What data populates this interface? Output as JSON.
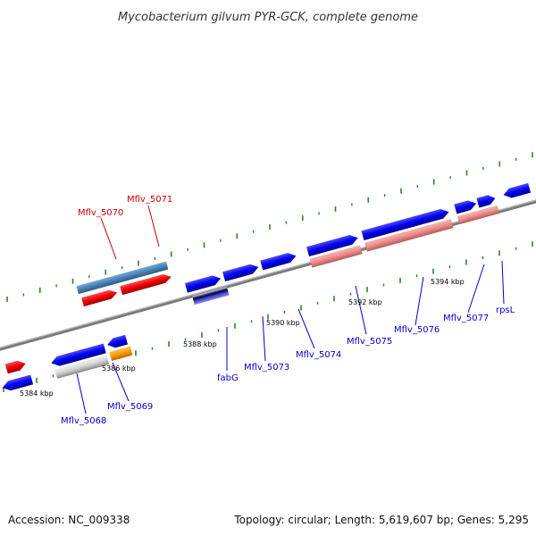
{
  "title": "Mycobacterium gilvum PYR-GCK, complete genome",
  "footer": {
    "accession": "Accession: NC_009338",
    "summary": "Topology: circular; Length: 5,619,607 bp; Genes: 5,295"
  },
  "colors": {
    "backbone": "#808080",
    "tick": "#228b22",
    "forward_gene": "#0000ee",
    "highlight_label": "#cc0000",
    "label": "#0000cc"
  },
  "kbp_marks": [
    "5384 kbp",
    "5386 kbp",
    "5388 kbp",
    "5390 kbp",
    "5392 kbp",
    "5394 kbp"
  ],
  "gene_labels": [
    {
      "text": "Mflv_5070",
      "color": "red"
    },
    {
      "text": "Mflv_5071",
      "color": "red"
    },
    {
      "text": "Mflv_5068",
      "color": "blue"
    },
    {
      "text": "Mflv_5069",
      "color": "blue"
    },
    {
      "text": "fabG",
      "color": "blue"
    },
    {
      "text": "Mflv_5073",
      "color": "blue"
    },
    {
      "text": "Mflv_5074",
      "color": "blue"
    },
    {
      "text": "Mflv_5075",
      "color": "blue"
    },
    {
      "text": "Mflv_5076",
      "color": "blue"
    },
    {
      "text": "Mflv_5077",
      "color": "blue"
    },
    {
      "text": "rpsL",
      "color": "blue"
    }
  ]
}
